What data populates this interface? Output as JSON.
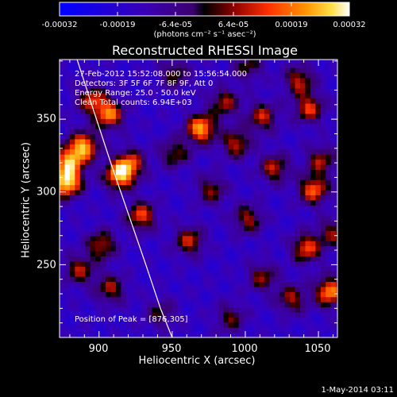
{
  "chart_data": {
    "type": "heatmap",
    "title": "Reconstructed RHESSI Image",
    "xlabel": "Heliocentric X (arcsec)",
    "ylabel": "Heliocentric Y (arcsec)",
    "xlim": [
      873,
      1063
    ],
    "ylim": [
      200,
      391
    ],
    "x_ticks": [
      "900",
      "950",
      "1000",
      "1050"
    ],
    "y_ticks": [
      "250",
      "300",
      "350"
    ],
    "colorbar": {
      "ticks": [
        "-0.00032",
        "-0.00019",
        "-6.4e-05",
        "6.4e-05",
        "0.00019",
        "0.00032"
      ],
      "unit_text": "(photons cm⁻² s⁻¹ asec⁻²)",
      "range": [
        -0.00032,
        0.00032
      ]
    },
    "info_lines": [
      "27-Feb-2012 15:52:08.000 to 15:56:54.000",
      "Detectors: 3F 5F 6F 7F 8F 9F, Att 0",
      "Energy Range: 25.0 - 50.0 keV",
      "Clean     Total counts: 6.94E+03"
    ],
    "peak_label": "Position of Peak = [876,305]",
    "timestamp": "1-May-2014 03:11",
    "blobs": [
      {
        "x": 876,
        "y": 305,
        "v": 1.0
      },
      {
        "x": 878,
        "y": 320,
        "v": 0.75
      },
      {
        "x": 888,
        "y": 330,
        "v": 0.8
      },
      {
        "x": 905,
        "y": 352,
        "v": 0.75
      },
      {
        "x": 912,
        "y": 310,
        "v": 0.85
      },
      {
        "x": 920,
        "y": 318,
        "v": 0.6
      },
      {
        "x": 893,
        "y": 362,
        "v": 0.55
      },
      {
        "x": 927,
        "y": 282,
        "v": 0.65
      },
      {
        "x": 900,
        "y": 262,
        "v": 0.55
      },
      {
        "x": 885,
        "y": 245,
        "v": 0.5
      },
      {
        "x": 906,
        "y": 232,
        "v": 0.5
      },
      {
        "x": 960,
        "y": 265,
        "v": 0.55
      },
      {
        "x": 968,
        "y": 342,
        "v": 0.85
      },
      {
        "x": 984,
        "y": 360,
        "v": 0.5
      },
      {
        "x": 992,
        "y": 332,
        "v": 0.55
      },
      {
        "x": 1010,
        "y": 350,
        "v": 0.55
      },
      {
        "x": 1042,
        "y": 356,
        "v": 0.6
      },
      {
        "x": 1035,
        "y": 375,
        "v": 0.55
      },
      {
        "x": 1018,
        "y": 315,
        "v": 0.55
      },
      {
        "x": 1045,
        "y": 300,
        "v": 0.7
      },
      {
        "x": 1050,
        "y": 320,
        "v": 0.5
      },
      {
        "x": 1040,
        "y": 260,
        "v": 0.65
      },
      {
        "x": 1056,
        "y": 230,
        "v": 0.8
      },
      {
        "x": 1030,
        "y": 225,
        "v": 0.5
      },
      {
        "x": 1000,
        "y": 280,
        "v": 0.5
      },
      {
        "x": 975,
        "y": 300,
        "v": 0.45
      },
      {
        "x": 950,
        "y": 325,
        "v": 0.45
      },
      {
        "x": 950,
        "y": 380,
        "v": 0.4
      },
      {
        "x": 1000,
        "y": 385,
        "v": 0.4
      },
      {
        "x": 1010,
        "y": 240,
        "v": 0.45
      },
      {
        "x": 988,
        "y": 212,
        "v": 0.4
      },
      {
        "x": 940,
        "y": 215,
        "v": 0.35
      },
      {
        "x": 1058,
        "y": 270,
        "v": 0.45
      }
    ],
    "limb_curve": [
      [
        885,
        391
      ],
      [
        895,
        360
      ],
      [
        908,
        320
      ],
      [
        920,
        285
      ],
      [
        932,
        250
      ],
      [
        942,
        220
      ],
      [
        950,
        200
      ]
    ],
    "grid": false
  }
}
